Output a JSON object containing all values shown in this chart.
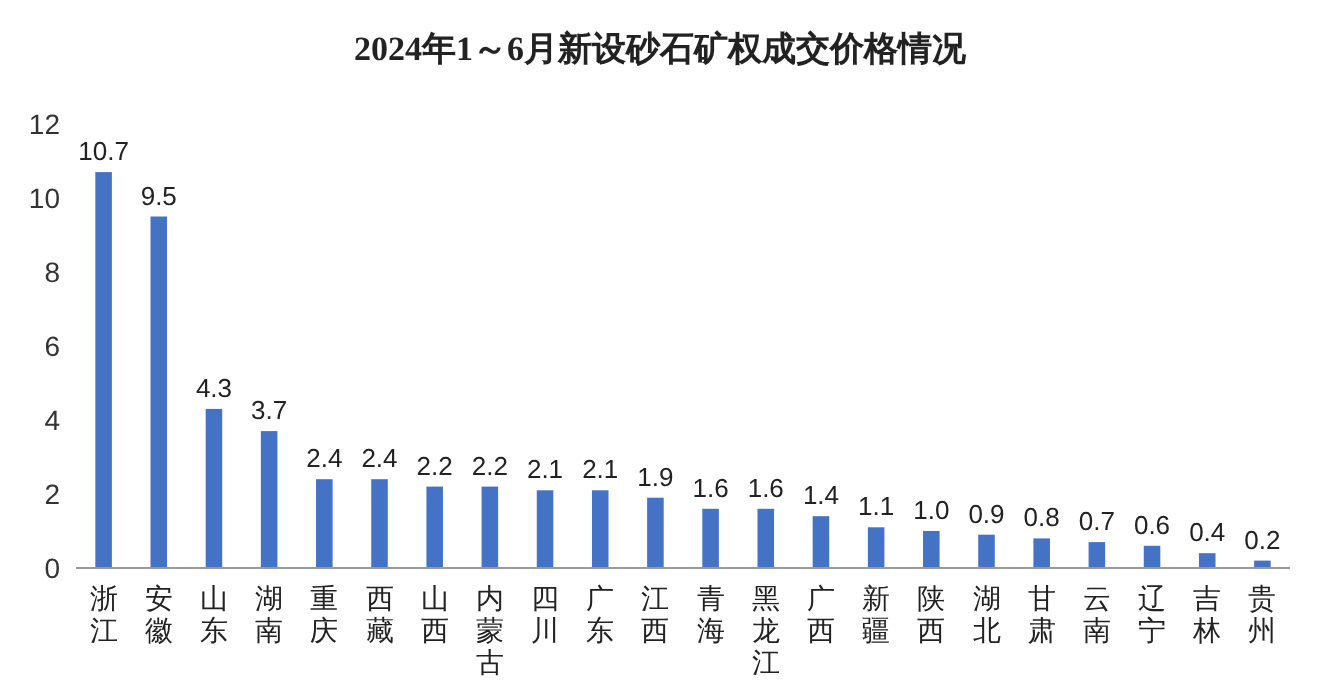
{
  "chart_data": {
    "type": "bar",
    "title": "2024年1～6月新设砂石矿权成交价格情况",
    "categories": [
      "浙江",
      "安徽",
      "山东",
      "湖南",
      "重庆",
      "西藏",
      "山西",
      "内蒙古",
      "四川",
      "广东",
      "江西",
      "青海",
      "黑龙江",
      "广西",
      "新疆",
      "陕西",
      "湖北",
      "甘肃",
      "云南",
      "辽宁",
      "吉林",
      "贵州"
    ],
    "values": [
      10.7,
      9.5,
      4.3,
      3.7,
      2.4,
      2.4,
      2.2,
      2.2,
      2.1,
      2.1,
      1.9,
      1.6,
      1.6,
      1.4,
      1.1,
      1.0,
      0.9,
      0.8,
      0.7,
      0.6,
      0.4,
      0.2
    ],
    "value_labels": [
      "10.7",
      "9.5",
      "4.3",
      "3.7",
      "2.4",
      "2.4",
      "2.2",
      "2.2",
      "2.1",
      "2.1",
      "1.9",
      "1.6",
      "1.6",
      "1.4",
      "1.1",
      "1.0",
      "0.9",
      "0.8",
      "0.7",
      "0.6",
      "0.4",
      "0.2"
    ],
    "color": "#4472c4",
    "ylim": [
      0,
      12
    ],
    "yticks": [
      0,
      2,
      4,
      6,
      8,
      10,
      12
    ],
    "grid": false
  }
}
